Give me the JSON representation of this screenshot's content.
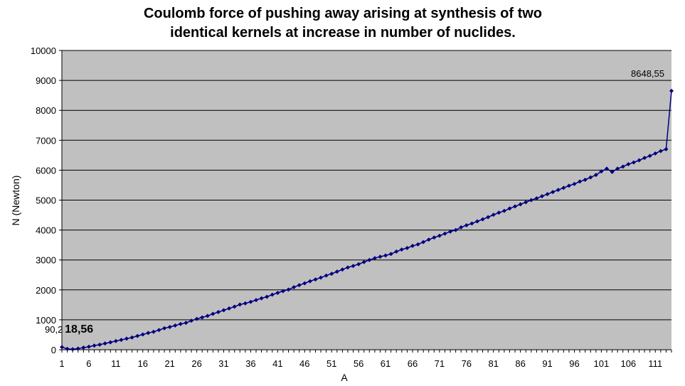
{
  "colors": {
    "plot_background": "#c0c0c0",
    "gridline": "#000000",
    "series_line": "#000080",
    "marker": "#000080",
    "axis": "#000000",
    "page_background": "#ffffff"
  },
  "chart_data": {
    "type": "line",
    "title": "Coulomb force of pushing away arising at synthesis of two identical kernels at increase in number of nuclides.",
    "title_lines": [
      "Coulomb force of pushing away arising at synthesis of two",
      "identical kernels at increase in number of nuclides."
    ],
    "xlabel": "A",
    "ylabel": "N (Newton)",
    "ylim": [
      0,
      10000
    ],
    "y_ticks": [
      0,
      1000,
      2000,
      3000,
      4000,
      5000,
      6000,
      7000,
      8000,
      9000,
      10000
    ],
    "y_tick_labels": [
      "0",
      "1000",
      "2000",
      "3000",
      "4000",
      "5000",
      "6000",
      "7000",
      "8000",
      "9000",
      "10000"
    ],
    "xlim": [
      1,
      114
    ],
    "x_ticks": [
      1,
      6,
      11,
      16,
      21,
      26,
      31,
      36,
      41,
      46,
      51,
      56,
      61,
      66,
      71,
      76,
      81,
      86,
      91,
      96,
      101,
      106,
      111
    ],
    "x_tick_labels": [
      "1",
      "6",
      "11",
      "16",
      "21",
      "26",
      "31",
      "36",
      "41",
      "46",
      "51",
      "56",
      "61",
      "66",
      "71",
      "76",
      "81",
      "86",
      "91",
      "96",
      "101",
      "106",
      "111"
    ],
    "grid": "horizontal",
    "legend": "none",
    "x": [
      1,
      2,
      3,
      4,
      5,
      6,
      7,
      8,
      9,
      10,
      11,
      12,
      13,
      14,
      15,
      16,
      17,
      18,
      19,
      20,
      21,
      22,
      23,
      24,
      25,
      26,
      27,
      28,
      29,
      30,
      31,
      32,
      33,
      34,
      35,
      36,
      37,
      38,
      39,
      40,
      41,
      42,
      43,
      44,
      45,
      46,
      47,
      48,
      49,
      50,
      51,
      52,
      53,
      54,
      55,
      56,
      57,
      58,
      59,
      60,
      61,
      62,
      63,
      64,
      65,
      66,
      67,
      68,
      69,
      70,
      71,
      72,
      73,
      74,
      75,
      76,
      77,
      78,
      79,
      80,
      81,
      82,
      83,
      84,
      85,
      86,
      87,
      88,
      89,
      90,
      91,
      92,
      93,
      94,
      95,
      96,
      97,
      98,
      99,
      100,
      101,
      102,
      103,
      104,
      105,
      106,
      107,
      108,
      109,
      110,
      111,
      112,
      113,
      114
    ],
    "series": [
      {
        "values": [
          90.2,
          30,
          18.56,
          40,
          70,
          100,
          140,
          170,
          210,
          250,
          290,
          330,
          370,
          410,
          460,
          510,
          560,
          600,
          660,
          720,
          760,
          810,
          860,
          900,
          970,
          1030,
          1080,
          1130,
          1200,
          1260,
          1320,
          1380,
          1440,
          1510,
          1550,
          1600,
          1660,
          1720,
          1770,
          1840,
          1900,
          1960,
          2010,
          2090,
          2160,
          2220,
          2290,
          2350,
          2410,
          2480,
          2540,
          2610,
          2680,
          2750,
          2800,
          2860,
          2930,
          3000,
          3060,
          3110,
          3150,
          3200,
          3280,
          3350,
          3400,
          3470,
          3520,
          3600,
          3680,
          3750,
          3810,
          3880,
          3950,
          4000,
          4090,
          4160,
          4220,
          4290,
          4360,
          4430,
          4510,
          4580,
          4640,
          4720,
          4790,
          4860,
          4930,
          5000,
          5060,
          5130,
          5200,
          5270,
          5340,
          5410,
          5480,
          5540,
          5620,
          5680,
          5760,
          5840,
          5960,
          6050,
          5940,
          6050,
          6120,
          6200,
          6260,
          6330,
          6410,
          6480,
          6560,
          6640,
          6700,
          8648.55
        ]
      }
    ],
    "annotations": [
      {
        "text": "90,2",
        "x": 1
      },
      {
        "text": "18,56",
        "x": 3
      },
      {
        "text": "8648,55",
        "x": 114
      }
    ]
  }
}
